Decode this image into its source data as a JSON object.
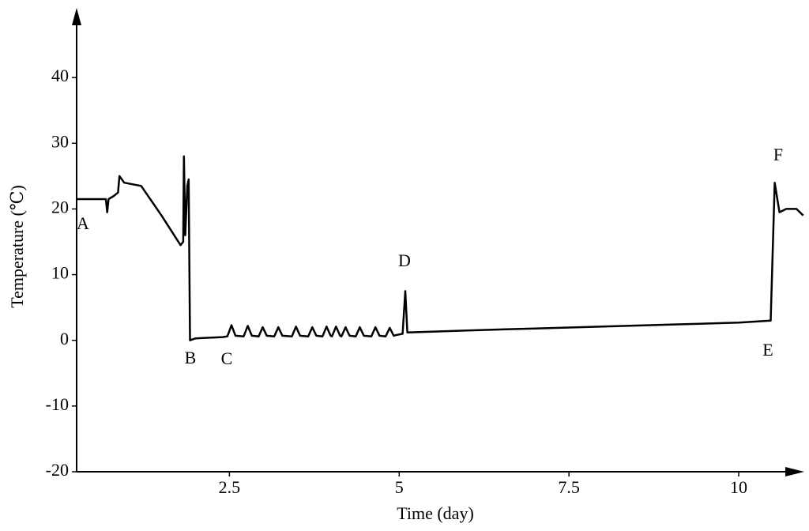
{
  "chart_data": {
    "type": "line",
    "xlabel": "Time (day)",
    "ylabel": "Temperature (℃)",
    "x": [
      0.25,
      0.68,
      0.7,
      0.72,
      0.8,
      0.86,
      0.88,
      0.95,
      1.2,
      1.5,
      1.78,
      1.82,
      1.83,
      1.85,
      1.88,
      1.9,
      1.92,
      2.0,
      2.4,
      2.47,
      2.53,
      2.59,
      2.71,
      2.77,
      2.83,
      2.93,
      2.99,
      3.05,
      3.16,
      3.22,
      3.28,
      3.42,
      3.48,
      3.54,
      3.66,
      3.72,
      3.78,
      3.87,
      3.93,
      3.99,
      4.01,
      4.07,
      4.13,
      4.15,
      4.21,
      4.27,
      4.36,
      4.42,
      4.48,
      4.59,
      4.65,
      4.71,
      4.8,
      4.86,
      4.92,
      4.95,
      5.05,
      5.09,
      5.12,
      6,
      7,
      8,
      9,
      10,
      10.47,
      10.53,
      10.6,
      10.7,
      10.85,
      10.95
    ],
    "series": [
      {
        "color": "#000000",
        "values": [
          21.5,
          21.5,
          19.5,
          21.5,
          22,
          22.5,
          25,
          24,
          23.5,
          19,
          14.5,
          15,
          28,
          16,
          23.5,
          24.5,
          0,
          0.3,
          0.5,
          0.6,
          2.3,
          0.7,
          0.6,
          2.2,
          0.7,
          0.6,
          2.0,
          0.7,
          0.6,
          2.0,
          0.7,
          0.6,
          2.1,
          0.7,
          0.6,
          2.0,
          0.7,
          0.6,
          2.1,
          0.7,
          0.6,
          2.1,
          0.7,
          0.6,
          2.0,
          0.7,
          0.6,
          2.0,
          0.7,
          0.6,
          2.0,
          0.7,
          0.6,
          1.9,
          0.7,
          0.8,
          1,
          7.5,
          1.2,
          1.5,
          1.8,
          2.1,
          2.4,
          2.7,
          3,
          24,
          19.5,
          20,
          20,
          19
        ]
      }
    ],
    "xlim": [
      0.25,
      10.93
    ],
    "ylim": [
      -20,
      50
    ],
    "xticks": [
      2.5,
      5,
      7.5,
      10
    ],
    "yticks": [
      -20,
      -10,
      0,
      10,
      20,
      30,
      40
    ],
    "annotations": [
      "A",
      "B",
      "C",
      "D",
      "E",
      "F"
    ]
  }
}
